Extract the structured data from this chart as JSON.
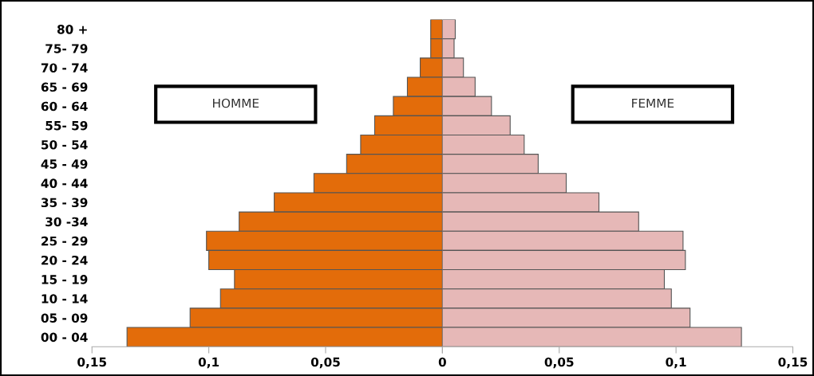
{
  "chart_data": [
    {
      "type": "bar",
      "orientation": "horizontal",
      "categories": [
        "80 +",
        "75- 79",
        "70 - 74",
        "65 - 69",
        "60 - 64",
        "55- 59",
        "50 - 54",
        "45 - 49",
        "40 - 44",
        "35 - 39",
        "30 -34",
        "25 - 29",
        "20 - 24",
        "15 - 19",
        "10 - 14",
        "05 - 09",
        "00 - 04"
      ],
      "series": [
        {
          "name": "HOMME",
          "color": "#e36c0a",
          "values": [
            0.005,
            0.005,
            0.0095,
            0.015,
            0.021,
            0.029,
            0.035,
            0.041,
            0.055,
            0.072,
            0.087,
            0.101,
            0.1,
            0.089,
            0.095,
            0.108,
            0.135
          ]
        }
      ],
      "xlim": [
        0.15,
        0
      ],
      "xticks": [
        {
          "value": 0.15,
          "label": "0,15"
        },
        {
          "value": 0.1,
          "label": "0,1"
        },
        {
          "value": 0.05,
          "label": "0,05"
        },
        0
      ],
      "grid": false,
      "legend": false
    },
    {
      "type": "bar",
      "orientation": "horizontal",
      "categories": [
        null,
        null,
        null,
        null,
        null,
        null,
        null,
        null,
        null,
        null,
        null,
        null,
        null,
        null,
        null,
        null,
        null
      ],
      "series": [
        {
          "name": "FEMME",
          "color": "#e6b8b7",
          "values": [
            0.0055,
            0.005,
            0.009,
            0.014,
            0.021,
            0.029,
            0.035,
            0.041,
            0.053,
            0.067,
            0.084,
            0.103,
            0.104,
            0.095,
            0.098,
            0.106,
            0.128
          ]
        }
      ],
      "xlim": [
        0,
        0.15
      ],
      "xticks": [
        {
          "value": 0,
          "label": null
        },
        {
          "value": 0.05,
          "label": "0,05"
        },
        {
          "value": 0.1,
          "label": "0,1"
        },
        {
          "value": 0.15,
          "label": "0,15"
        }
      ],
      "tick_labels": "x",
      "grid": false,
      "legend": false
    }
  ]
}
